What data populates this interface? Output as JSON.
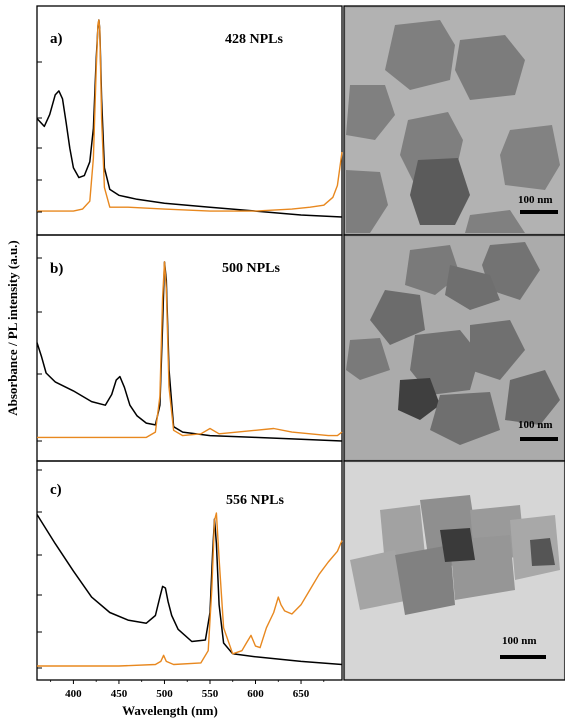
{
  "figure": {
    "ylabel": "Absorbance / PL intensity (a.u.)",
    "xlabel": "Wavelength (nm)",
    "x_ticks": [
      "400",
      "450",
      "500",
      "550",
      "600",
      "650"
    ]
  },
  "chart_data": [
    {
      "type": "line",
      "panel_label": "a)",
      "title": "428 NPLs",
      "xlim": [
        360,
        695
      ],
      "ylim": [
        0,
        1
      ],
      "colors": {
        "absorbance": "#000000",
        "pl": "#e8881f"
      },
      "series": [
        {
          "values_x": [
            360,
            368,
            374,
            380,
            384,
            388,
            392,
            396,
            400,
            406,
            412,
            418,
            422,
            425,
            427,
            428,
            429,
            431,
            434,
            440,
            450,
            470,
            500,
            550,
            600,
            650,
            695
          ],
          "values_y": [
            0.5,
            0.46,
            0.52,
            0.62,
            0.64,
            0.6,
            0.48,
            0.35,
            0.25,
            0.2,
            0.21,
            0.28,
            0.45,
            0.8,
            0.97,
            1.0,
            0.95,
            0.6,
            0.25,
            0.14,
            0.11,
            0.09,
            0.07,
            0.05,
            0.03,
            0.01,
            0.0
          ]
        },
        {
          "values_x": [
            360,
            380,
            400,
            410,
            418,
            422,
            425,
            427,
            428,
            429,
            431,
            434,
            440,
            460,
            500,
            550,
            600,
            640,
            660,
            675,
            685,
            690,
            695
          ],
          "values_y": [
            0.03,
            0.03,
            0.03,
            0.04,
            0.08,
            0.3,
            0.75,
            0.98,
            1.0,
            0.95,
            0.5,
            0.15,
            0.05,
            0.05,
            0.04,
            0.03,
            0.03,
            0.04,
            0.05,
            0.06,
            0.1,
            0.16,
            0.33
          ]
        }
      ]
    },
    {
      "type": "line",
      "panel_label": "b)",
      "title": "500 NPLs",
      "xlim": [
        360,
        695
      ],
      "ylim": [
        0,
        1
      ],
      "colors": {
        "absorbance": "#000000",
        "pl": "#e8881f"
      },
      "series": [
        {
          "values_x": [
            360,
            365,
            370,
            380,
            400,
            420,
            435,
            442,
            447,
            451,
            456,
            462,
            470,
            480,
            490,
            495,
            498,
            500,
            502,
            505,
            510,
            520,
            550,
            600,
            650,
            695
          ],
          "values_y": [
            0.55,
            0.47,
            0.38,
            0.33,
            0.28,
            0.22,
            0.2,
            0.26,
            0.34,
            0.36,
            0.3,
            0.2,
            0.14,
            0.1,
            0.09,
            0.2,
            0.65,
            1.0,
            0.9,
            0.4,
            0.08,
            0.05,
            0.03,
            0.02,
            0.01,
            0.0
          ]
        },
        {
          "values_x": [
            360,
            400,
            450,
            480,
            490,
            495,
            498,
            500,
            502,
            505,
            510,
            520,
            540,
            550,
            560,
            580,
            600,
            620,
            640,
            660,
            680,
            690,
            695
          ],
          "values_y": [
            0.02,
            0.02,
            0.02,
            0.02,
            0.05,
            0.25,
            0.8,
            1.0,
            0.85,
            0.3,
            0.06,
            0.03,
            0.04,
            0.07,
            0.04,
            0.05,
            0.06,
            0.07,
            0.05,
            0.04,
            0.03,
            0.03,
            0.05
          ]
        }
      ]
    },
    {
      "type": "line",
      "panel_label": "c)",
      "title": "556 NPLs",
      "xlim": [
        360,
        695
      ],
      "ylim": [
        0,
        1
      ],
      "colors": {
        "absorbance": "#000000",
        "pl": "#e8881f"
      },
      "series": [
        {
          "values_x": [
            360,
            380,
            400,
            420,
            440,
            460,
            480,
            490,
            495,
            498,
            501,
            504,
            508,
            515,
            530,
            545,
            550,
            553,
            555,
            557,
            560,
            565,
            575,
            600,
            650,
            695
          ],
          "values_y": [
            0.99,
            0.8,
            0.62,
            0.45,
            0.35,
            0.3,
            0.28,
            0.33,
            0.45,
            0.52,
            0.51,
            0.42,
            0.33,
            0.24,
            0.16,
            0.17,
            0.35,
            0.75,
            0.96,
            0.8,
            0.4,
            0.15,
            0.08,
            0.06,
            0.03,
            0.01
          ]
        },
        {
          "values_x": [
            360,
            400,
            450,
            490,
            496,
            499,
            502,
            510,
            540,
            548,
            552,
            555,
            557,
            560,
            565,
            575,
            585,
            590,
            595,
            600,
            605,
            612,
            620,
            625,
            628,
            632,
            640,
            650,
            660,
            670,
            680,
            690,
            695
          ],
          "values_y": [
            0.0,
            0.0,
            0.0,
            0.01,
            0.03,
            0.07,
            0.03,
            0.01,
            0.02,
            0.1,
            0.5,
            0.95,
            1.0,
            0.7,
            0.25,
            0.08,
            0.1,
            0.15,
            0.2,
            0.13,
            0.12,
            0.25,
            0.35,
            0.45,
            0.4,
            0.36,
            0.34,
            0.4,
            0.5,
            0.6,
            0.68,
            0.75,
            0.82
          ]
        }
      ]
    }
  ],
  "tem_images": [
    {
      "scale_bar": "100 nm"
    },
    {
      "scale_bar": "100 nm"
    },
    {
      "scale_bar": "100 nm"
    }
  ]
}
